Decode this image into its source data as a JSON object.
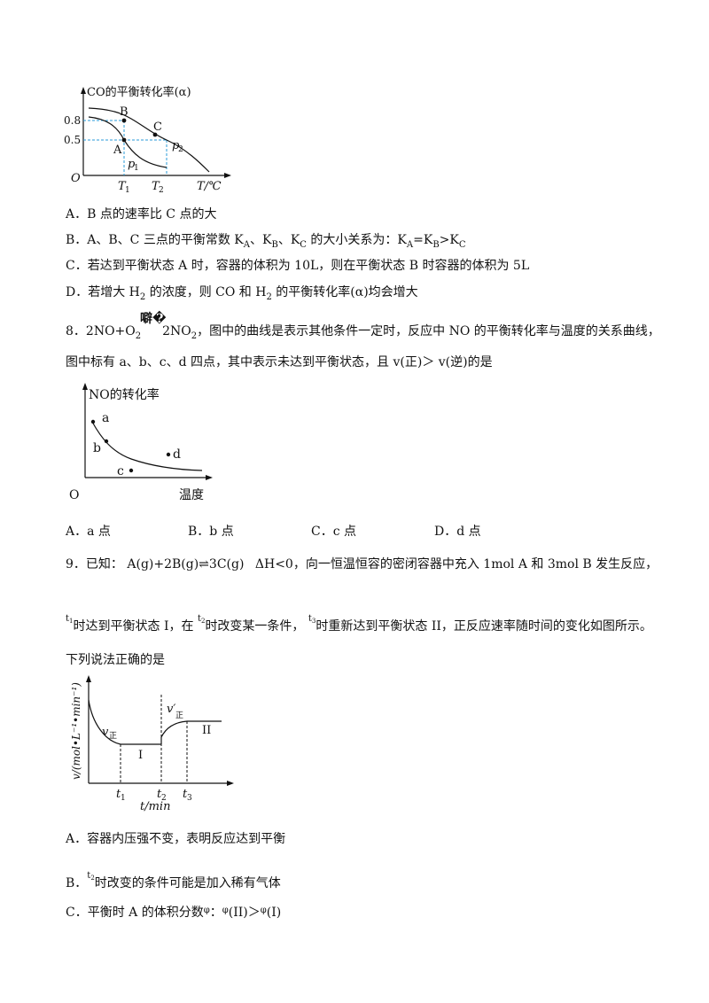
{
  "q7": {
    "chart": {
      "ylabel": "CO的平衡转化率(α)",
      "xlabel": "T/℃",
      "origin": "O",
      "y_ticks": [
        "0.8",
        "0.5"
      ],
      "x_ticks": [
        "T",
        "1",
        "T",
        "2"
      ],
      "points": [
        "B",
        "C",
        "A"
      ],
      "curves": [
        "p",
        "1",
        "p",
        "2"
      ]
    },
    "options": {
      "a": "A．B 点的速率比 C 点的大",
      "b_pre": "B．A、B、C 三点的平衡常数 K",
      "b_subA": "A",
      "b_mid1": "、K",
      "b_subB": "B",
      "b_mid2": "、K",
      "b_subC": "C",
      "b_mid3": " 的大小关系为：K",
      "b_subA2": "A",
      "b_mid4": "=K",
      "b_subB2": "B",
      "b_mid5": ">K",
      "b_subC2": "C",
      "c": "C．若达到平衡状态 A 时，容器的体积为 10L，则在平衡状态 B 时容器的体积为 5L",
      "d_pre": "D．若增大 H",
      "d_sub1": "2",
      "d_mid": " 的浓度，则 CO  和 H",
      "d_sub2": "2",
      "d_post": " 的平衡转化率(α)均会增大"
    }
  },
  "q8": {
    "stem_pre": "8．2NO+O",
    "stem_sub1": "2",
    "stem_glyph": "噼�",
    "stem_mid": "2NO",
    "stem_sub2": "2",
    "stem_post": "，图中的曲线是表示其他条件一定时，反应中 NO 的平衡转化率与温度的关系曲线，",
    "stem_line2": "图中标有 a、b、c、d 四点，其中表示未达到平衡状态，且 v(正)＞  v(逆)的是",
    "chart": {
      "ylabel": "NO的转化率",
      "xlabel": "温度",
      "origin": "O",
      "points": [
        "a",
        "b",
        "c",
        "d"
      ]
    },
    "options": [
      "A．a 点",
      "B．b 点",
      "C．c 点",
      "D．d 点"
    ]
  },
  "q9": {
    "num": "9．已知：",
    "equation": "A(g)+2B(g)⇌3C(g)",
    "dh": "ΔH<0",
    "stem_post": "，向一恒温恒容的密闭容器中充入 1mol A 和 3mol B 发生反应，",
    "t1": "t",
    "t1_sub": "1",
    "line2_a": "时达到平衡状态 I，在",
    "t2": "t",
    "t2_sub": "2",
    "line2_b": "时改变某一条件，",
    "t3": "t",
    "t3_sub": "3",
    "line2_c": "时重新达到平衡状态 II，正反应速率随时间的变化如图所示。",
    "line3": "下列说法正确的是",
    "chart": {
      "ylabel": "v/(mol•L⁻¹•min⁻¹)",
      "xlabel": "t/min",
      "v_label": "v",
      "v_sub": "正",
      "v2_label": "v′",
      "v2_sub": "正",
      "region1": "I",
      "region2": "II",
      "ticks": [
        "t",
        "1",
        "t",
        "2",
        "t",
        "3"
      ]
    },
    "options": {
      "a": "A．容器内压强不变，表明反应达到平衡",
      "b_pre": "B．",
      "b_t": "t",
      "b_t_sub": "2",
      "b_post": "时改变的条件可能是加入稀有气体",
      "c_pre": "C．平衡时 A 的体积分数",
      "c_phi": "φ",
      "c_mid": "：",
      "c_phi2": "φ",
      "c_ii": "(II)＞",
      "c_phi3": "φ",
      "c_i": "(I)"
    }
  }
}
